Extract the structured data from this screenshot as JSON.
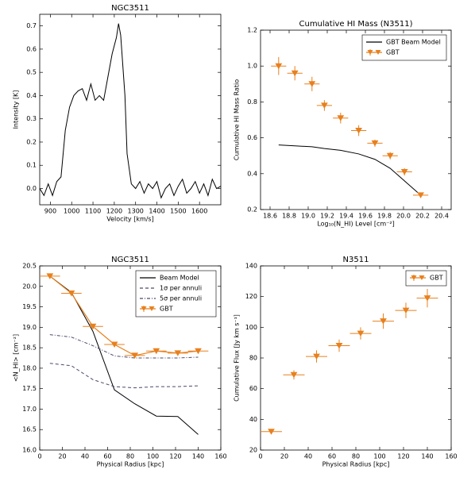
{
  "chart_data": [
    {
      "type": "line",
      "title": "NGC3511",
      "x_label": "Velocity [km/s]",
      "y_label": "Intensity [K]",
      "x": [
        850,
        870,
        890,
        910,
        930,
        950,
        970,
        990,
        1010,
        1030,
        1050,
        1070,
        1090,
        1110,
        1130,
        1150,
        1170,
        1190,
        1210,
        1220,
        1230,
        1250,
        1260,
        1280,
        1300,
        1320,
        1340,
        1360,
        1380,
        1400,
        1420,
        1440,
        1460,
        1480,
        1500,
        1520,
        1540,
        1560,
        1580,
        1600,
        1620,
        1640,
        1660,
        1680,
        1700
      ],
      "series": [
        {
          "color": "#000000",
          "style": "solid",
          "values": [
            0.0,
            -0.03,
            0.02,
            -0.03,
            0.03,
            0.05,
            0.25,
            0.35,
            0.4,
            0.42,
            0.43,
            0.38,
            0.45,
            0.38,
            0.4,
            0.38,
            0.48,
            0.58,
            0.65,
            0.71,
            0.66,
            0.4,
            0.15,
            0.02,
            0.0,
            0.03,
            -0.02,
            0.02,
            0.0,
            0.03,
            -0.04,
            0.0,
            0.02,
            -0.03,
            0.01,
            0.04,
            -0.02,
            0.0,
            0.03,
            -0.02,
            0.02,
            -0.03,
            0.04,
            0.0,
            0.01
          ]
        }
      ],
      "xlim": [
        850,
        1700
      ],
      "xticks": [
        900,
        1000,
        1100,
        1200,
        1300,
        1400,
        1500,
        1600
      ],
      "ylim": [
        -0.07,
        0.75
      ],
      "yticks": [
        {
          "value": 0.0,
          "label": "0.0"
        },
        0.1,
        0.2,
        0.3,
        0.4,
        0.5,
        0.6,
        0.7
      ]
    },
    {
      "type": "line",
      "title": "Cumulative HI Mass (N3511)",
      "x_label": "Log₁₀(N_HI) Level [cm⁻²]",
      "y_label": "Cumulative HI Mass Ratio",
      "x": [
        18.69,
        18.86,
        19.04,
        19.17,
        19.34,
        19.53,
        19.7,
        19.86,
        20.01,
        20.18
      ],
      "series": [
        {
          "name": "GBT Beam Model",
          "color": "#000000",
          "style": "solid",
          "values": [
            0.56,
            0.555,
            0.55,
            0.54,
            0.53,
            0.51,
            0.48,
            0.43,
            0.36,
            0.28
          ]
        },
        {
          "name": "GBT",
          "color": "#e8801e",
          "style": "errorbar",
          "values": [
            1.0,
            0.96,
            0.9,
            0.78,
            0.71,
            0.64,
            0.57,
            0.5,
            0.41,
            0.28
          ],
          "xerr": [
            0.08,
            0.08,
            0.08,
            0.08,
            0.08,
            0.08,
            0.08,
            0.08,
            0.08,
            0.08
          ],
          "yerr": [
            0.05,
            0.04,
            0.04,
            0.03,
            0.03,
            0.03,
            0.02,
            0.02,
            0.02,
            0.01
          ]
        }
      ],
      "legend": "upper right",
      "xlim": [
        18.5,
        20.5
      ],
      "xticks": [
        18.6,
        18.8,
        {
          "value": 19.0,
          "label": "19.0"
        },
        19.2,
        19.4,
        19.6,
        19.8,
        {
          "value": 20.0,
          "label": "20.0"
        },
        20.2,
        20.4
      ],
      "ylim": [
        0.2,
        1.2
      ],
      "yticks": [
        0.2,
        0.4,
        0.6,
        0.8,
        {
          "value": 1.0,
          "label": "1.0"
        },
        1.2
      ]
    },
    {
      "type": "line",
      "title": "NGC3511",
      "x_label": "Physical Radius [kpc]",
      "y_label": "<N_HI> [cm⁻²]",
      "x": [
        9,
        28,
        47,
        66,
        84,
        103,
        122,
        140
      ],
      "series": [
        {
          "name": "Beam Model",
          "color": "#000000",
          "style": "solid",
          "values": [
            20.25,
            19.85,
            18.9,
            17.47,
            17.13,
            16.83,
            16.82,
            16.38
          ]
        },
        {
          "name": "1σ per annuli",
          "color": "#4a4a6a",
          "style": "dashed",
          "values": [
            18.12,
            18.06,
            17.72,
            17.55,
            17.52,
            17.55,
            17.55,
            17.57
          ]
        },
        {
          "name": "5σ per annuli",
          "color": "#4a4a6a",
          "style": "dashdot",
          "values": [
            18.82,
            18.76,
            18.55,
            18.3,
            18.25,
            18.25,
            18.25,
            18.27
          ]
        },
        {
          "name": "GBT",
          "color": "#e8801e",
          "style": "errorbar-line",
          "values": [
            20.25,
            19.83,
            19.02,
            18.58,
            18.31,
            18.42,
            18.37,
            18.42
          ],
          "xerr": [
            9,
            9,
            9,
            9,
            9,
            9,
            9,
            9
          ],
          "yerr": [
            0.03,
            0.03,
            0.03,
            0.03,
            0.03,
            0.03,
            0.03,
            0.03
          ]
        }
      ],
      "legend": "upper right",
      "xlim": [
        0,
        160
      ],
      "xticks": [
        0,
        20,
        40,
        60,
        80,
        100,
        120,
        140,
        160
      ],
      "ylim": [
        16.0,
        20.5
      ],
      "yticks": [
        {
          "value": 16.0,
          "label": "16.0"
        },
        16.5,
        {
          "value": 17.0,
          "label": "17.0"
        },
        17.5,
        {
          "value": 18.0,
          "label": "18.0"
        },
        18.5,
        {
          "value": 19.0,
          "label": "19.0"
        },
        19.5,
        {
          "value": 20.0,
          "label": "20.0"
        },
        20.5
      ]
    },
    {
      "type": "line",
      "title": "N3511",
      "x_label": "Physical Radius [kpc]",
      "y_label": "Cumulative Flux [Jy km s⁻¹]",
      "x": [
        9,
        28,
        47,
        66,
        84,
        103,
        122,
        140
      ],
      "series": [
        {
          "name": "GBT",
          "color": "#e8801e",
          "style": "errorbar",
          "values": [
            32,
            69,
            81,
            88,
            96,
            104,
            111,
            119
          ],
          "xerr": [
            9,
            9,
            9,
            9,
            9,
            9,
            9,
            9
          ],
          "yerr": [
            1,
            3,
            4,
            4,
            4,
            5,
            5,
            6
          ]
        }
      ],
      "legend": "upper right",
      "xlim": [
        0,
        160
      ],
      "xticks": [
        0,
        20,
        40,
        60,
        80,
        100,
        120,
        140,
        160
      ],
      "ylim": [
        20,
        140
      ],
      "yticks": [
        20,
        40,
        60,
        80,
        100,
        120,
        140
      ]
    }
  ]
}
